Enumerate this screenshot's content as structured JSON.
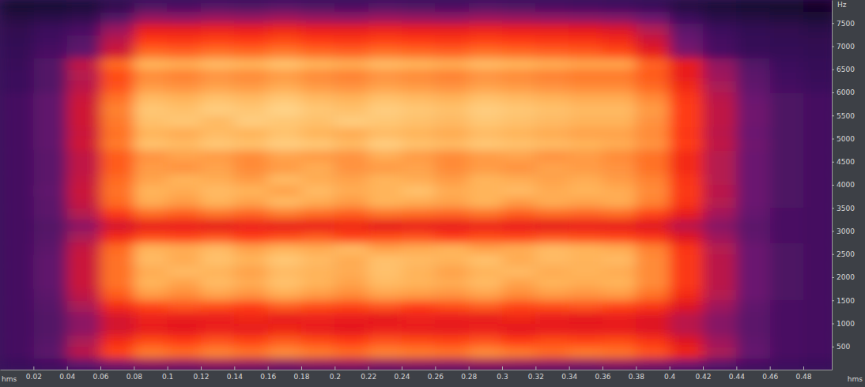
{
  "chart_data": {
    "type": "heatmap",
    "x_label": "hms",
    "y_label": "Hz",
    "xlim": [
      0,
      0.497
    ],
    "ylim": [
      0,
      8000
    ],
    "xticks": [
      0.02,
      0.04,
      0.06,
      0.08,
      0.1,
      0.12,
      0.14,
      0.16,
      0.18,
      0.2,
      0.22,
      0.24,
      0.26,
      0.28,
      0.3,
      0.32,
      0.34,
      0.36,
      0.38,
      0.4,
      0.42,
      0.44,
      0.46,
      0.48
    ],
    "yticks": [
      500,
      1000,
      1500,
      2000,
      2500,
      3000,
      3500,
      4000,
      4500,
      5000,
      5500,
      6000,
      6500,
      7000,
      7500
    ],
    "zlim": [
      0,
      100
    ],
    "x": [
      0.01,
      0.03,
      0.05,
      0.07,
      0.09,
      0.11,
      0.13,
      0.15,
      0.17,
      0.19,
      0.21,
      0.23,
      0.25,
      0.27,
      0.29,
      0.31,
      0.33,
      0.35,
      0.37,
      0.39,
      0.41,
      0.43,
      0.45,
      0.47,
      0.49
    ],
    "y": [
      125,
      375,
      625,
      875,
      1125,
      1375,
      1625,
      1875,
      2125,
      2375,
      2625,
      2875,
      3125,
      3375,
      3625,
      3875,
      4125,
      4375,
      4625,
      4875,
      5125,
      5375,
      5625,
      5875,
      6125,
      6375,
      6625,
      6875,
      7125,
      7375,
      7625,
      7875
    ],
    "values": [
      [
        28,
        30,
        36,
        42,
        45,
        44,
        46,
        45,
        43,
        45,
        46,
        44,
        45,
        44,
        46,
        45,
        44,
        43,
        45,
        43,
        40,
        35,
        31,
        29,
        28
      ],
      [
        30,
        35,
        52,
        71,
        78,
        76,
        79,
        77,
        80,
        78,
        76,
        79,
        78,
        77,
        80,
        78,
        76,
        78,
        77,
        73,
        64,
        49,
        37,
        31,
        30
      ],
      [
        30,
        34,
        49,
        66,
        72,
        70,
        73,
        71,
        74,
        72,
        70,
        73,
        72,
        71,
        73,
        70,
        72,
        71,
        72,
        68,
        59,
        47,
        36,
        31,
        30
      ],
      [
        30,
        33,
        44,
        57,
        62,
        60,
        63,
        61,
        64,
        62,
        60,
        63,
        62,
        61,
        63,
        60,
        62,
        61,
        62,
        59,
        52,
        43,
        35,
        31,
        30
      ],
      [
        30,
        33,
        44,
        57,
        63,
        61,
        62,
        64,
        61,
        63,
        62,
        60,
        63,
        62,
        61,
        64,
        62,
        60,
        62,
        59,
        52,
        43,
        35,
        31,
        30
      ],
      [
        30,
        34,
        49,
        66,
        71,
        73,
        72,
        70,
        74,
        72,
        71,
        73,
        70,
        72,
        74,
        71,
        72,
        73,
        71,
        68,
        59,
        47,
        36,
        31,
        30
      ],
      [
        30,
        35,
        53,
        74,
        82,
        80,
        83,
        81,
        84,
        82,
        80,
        83,
        82,
        81,
        83,
        80,
        82,
        81,
        82,
        77,
        66,
        51,
        38,
        32,
        30
      ],
      [
        30,
        36,
        55,
        77,
        85,
        83,
        86,
        84,
        87,
        85,
        83,
        86,
        85,
        84,
        86,
        83,
        85,
        84,
        85,
        80,
        69,
        52,
        38,
        32,
        30
      ],
      [
        30,
        36,
        55,
        77,
        84,
        86,
        85,
        83,
        86,
        85,
        84,
        87,
        85,
        83,
        85,
        86,
        84,
        85,
        84,
        80,
        69,
        52,
        38,
        32,
        30
      ],
      [
        30,
        36,
        55,
        77,
        86,
        84,
        87,
        85,
        88,
        86,
        84,
        87,
        86,
        85,
        87,
        84,
        86,
        85,
        86,
        80,
        69,
        52,
        38,
        32,
        30
      ],
      [
        30,
        35,
        54,
        76,
        85,
        84,
        86,
        83,
        85,
        84,
        86,
        83,
        84,
        85,
        83,
        84,
        86,
        85,
        84,
        79,
        68,
        51,
        38,
        32,
        30
      ],
      [
        30,
        34,
        49,
        66,
        72,
        71,
        73,
        70,
        72,
        74,
        71,
        72,
        73,
        70,
        72,
        71,
        73,
        72,
        71,
        68,
        59,
        47,
        36,
        31,
        30
      ],
      [
        30,
        33,
        44,
        57,
        61,
        62,
        60,
        63,
        61,
        62,
        64,
        60,
        62,
        61,
        63,
        62,
        60,
        62,
        61,
        59,
        52,
        43,
        35,
        31,
        30
      ],
      [
        30,
        35,
        51,
        69,
        76,
        74,
        77,
        75,
        78,
        76,
        74,
        77,
        76,
        75,
        77,
        74,
        76,
        75,
        76,
        71,
        62,
        48,
        37,
        31,
        30
      ],
      [
        30,
        35,
        54,
        76,
        84,
        82,
        85,
        83,
        86,
        84,
        82,
        85,
        84,
        83,
        85,
        82,
        84,
        83,
        84,
        79,
        68,
        51,
        38,
        32,
        30
      ],
      [
        30,
        36,
        55,
        77,
        85,
        84,
        86,
        85,
        83,
        86,
        84,
        85,
        87,
        84,
        85,
        86,
        84,
        85,
        84,
        80,
        69,
        52,
        38,
        32,
        30
      ],
      [
        30,
        35,
        54,
        76,
        83,
        85,
        84,
        82,
        86,
        84,
        83,
        85,
        84,
        82,
        85,
        84,
        83,
        84,
        82,
        79,
        68,
        51,
        38,
        32,
        30
      ],
      [
        30,
        35,
        53,
        74,
        82,
        81,
        83,
        80,
        82,
        84,
        81,
        82,
        83,
        80,
        82,
        81,
        83,
        82,
        81,
        77,
        66,
        51,
        38,
        32,
        30
      ],
      [
        30,
        35,
        53,
        74,
        81,
        83,
        82,
        80,
        83,
        82,
        81,
        84,
        82,
        80,
        82,
        83,
        81,
        82,
        80,
        77,
        66,
        51,
        38,
        32,
        30
      ],
      [
        30,
        36,
        56,
        78,
        87,
        86,
        88,
        87,
        89,
        88,
        86,
        89,
        87,
        86,
        88,
        87,
        86,
        85,
        84,
        81,
        70,
        53,
        39,
        32,
        30
      ],
      [
        30,
        36,
        55,
        77,
        85,
        84,
        86,
        85,
        87,
        85,
        84,
        86,
        85,
        84,
        86,
        85,
        84,
        83,
        83,
        80,
        69,
        52,
        38,
        32,
        30
      ],
      [
        30,
        36,
        56,
        78,
        87,
        88,
        86,
        89,
        88,
        87,
        89,
        88,
        87,
        86,
        88,
        87,
        86,
        85,
        85,
        81,
        70,
        53,
        39,
        32,
        30
      ],
      [
        30,
        36,
        56,
        79,
        88,
        87,
        89,
        88,
        90,
        88,
        87,
        89,
        88,
        87,
        89,
        88,
        87,
        86,
        86,
        82,
        70,
        53,
        39,
        32,
        30
      ],
      [
        30,
        36,
        55,
        77,
        86,
        85,
        87,
        86,
        88,
        86,
        85,
        87,
        86,
        85,
        87,
        86,
        85,
        84,
        84,
        80,
        69,
        52,
        38,
        32,
        30
      ],
      [
        28,
        33,
        52,
        73,
        82,
        81,
        83,
        82,
        84,
        82,
        81,
        83,
        82,
        81,
        83,
        82,
        81,
        80,
        80,
        76,
        65,
        49,
        36,
        30,
        28
      ],
      [
        28,
        33,
        51,
        72,
        80,
        79,
        81,
        80,
        82,
        80,
        79,
        81,
        80,
        79,
        81,
        80,
        79,
        78,
        78,
        74,
        62,
        47,
        35,
        29,
        27
      ],
      [
        27,
        33,
        53,
        76,
        85,
        84,
        86,
        85,
        87,
        85,
        84,
        86,
        85,
        84,
        86,
        85,
        84,
        83,
        83,
        75,
        62,
        45,
        33,
        28,
        26
      ],
      [
        26,
        31,
        36,
        56,
        76,
        75,
        77,
        76,
        78,
        76,
        75,
        77,
        76,
        75,
        77,
        76,
        75,
        74,
        72,
        61,
        41,
        31,
        27,
        26,
        25
      ],
      [
        25,
        29,
        34,
        52,
        70,
        69,
        71,
        70,
        72,
        70,
        69,
        71,
        70,
        69,
        71,
        70,
        69,
        68,
        66,
        56,
        38,
        30,
        26,
        25,
        24
      ],
      [
        24,
        28,
        31,
        46,
        62,
        61,
        63,
        62,
        64,
        62,
        61,
        63,
        62,
        61,
        63,
        62,
        61,
        60,
        58,
        50,
        35,
        28,
        25,
        24,
        22
      ],
      [
        20,
        22,
        24,
        33,
        45,
        44,
        46,
        45,
        47,
        45,
        44,
        46,
        45,
        44,
        46,
        45,
        44,
        43,
        42,
        38,
        28,
        22,
        20,
        18,
        16
      ],
      [
        14,
        15,
        17,
        24,
        32,
        31,
        33,
        32,
        34,
        32,
        31,
        33,
        32,
        31,
        33,
        32,
        31,
        30,
        29,
        27,
        20,
        16,
        14,
        12,
        10
      ]
    ]
  }
}
